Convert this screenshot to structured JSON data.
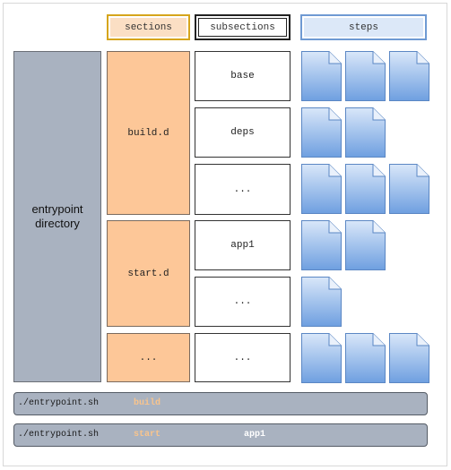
{
  "headers": {
    "sections": "sections",
    "subsections": "subsections",
    "steps": "steps"
  },
  "entrypoint": {
    "line1": "entrypoint",
    "line2": "directory"
  },
  "sections": [
    "build.d",
    "start.d",
    "..."
  ],
  "subsections": [
    "base",
    "deps",
    "...",
    "app1",
    "...",
    "..."
  ],
  "steps_per_subsection": [
    3,
    2,
    3,
    2,
    1,
    3
  ],
  "commands": [
    {
      "script": "./entrypoint.sh",
      "section": "build",
      "subsection": ""
    },
    {
      "script": "./entrypoint.sh",
      "section": "start",
      "subsection": "app1"
    }
  ],
  "colors": {
    "section_fill": "#fdc798",
    "entry_fill": "#a9b2c0",
    "step_fill": "#7aa6e0",
    "arg_color": "#f8c48d"
  },
  "icons": {
    "step": "document-icon"
  }
}
